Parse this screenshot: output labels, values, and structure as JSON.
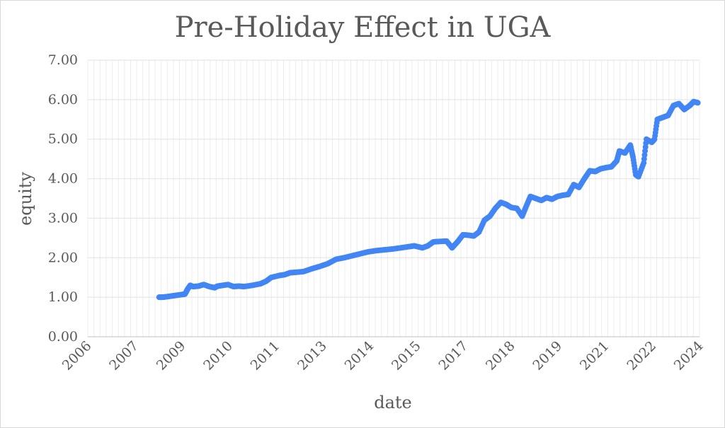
{
  "chart_data": {
    "type": "scatter",
    "title": "Pre-Holiday Effect in UGA",
    "xlabel": "date",
    "ylabel": "equity",
    "x_tick_labels": [
      "2006",
      "2007",
      "2009",
      "2010",
      "2011",
      "2013",
      "2014",
      "2015",
      "2017",
      "2018",
      "2019",
      "2021",
      "2022",
      "2024"
    ],
    "y_tick_labels": [
      "0.00",
      "1.00",
      "2.00",
      "3.00",
      "4.00",
      "5.00",
      "6.00",
      "7.00"
    ],
    "xlim": [
      "2006-02-01",
      "2024-12-20"
    ],
    "ylim": [
      0,
      7
    ],
    "grid": true,
    "series_color": "#4285f4",
    "series": [
      {
        "points": [
          [
            "2008-04-15",
            1.0
          ],
          [
            "2008-05-20",
            1.0
          ],
          [
            "2008-07-01",
            1.01
          ],
          [
            "2008-09-01",
            1.03
          ],
          [
            "2008-11-01",
            1.05
          ],
          [
            "2009-01-05",
            1.07
          ],
          [
            "2009-02-01",
            1.08
          ],
          [
            "2009-03-01",
            1.2
          ],
          [
            "2009-04-01",
            1.3
          ],
          [
            "2009-05-01",
            1.27
          ],
          [
            "2009-07-01",
            1.28
          ],
          [
            "2009-09-01",
            1.32
          ],
          [
            "2009-11-01",
            1.27
          ],
          [
            "2010-01-01",
            1.24
          ],
          [
            "2010-02-01",
            1.28
          ],
          [
            "2010-04-01",
            1.3
          ],
          [
            "2010-06-01",
            1.32
          ],
          [
            "2010-08-01",
            1.27
          ],
          [
            "2010-10-01",
            1.28
          ],
          [
            "2010-12-01",
            1.27
          ],
          [
            "2011-03-01",
            1.3
          ],
          [
            "2011-06-01",
            1.34
          ],
          [
            "2011-08-01",
            1.4
          ],
          [
            "2011-10-01",
            1.5
          ],
          [
            "2012-01-01",
            1.55
          ],
          [
            "2012-03-01",
            1.57
          ],
          [
            "2012-05-01",
            1.62
          ],
          [
            "2012-07-01",
            1.63
          ],
          [
            "2012-10-01",
            1.65
          ],
          [
            "2013-01-01",
            1.72
          ],
          [
            "2013-04-01",
            1.78
          ],
          [
            "2013-07-01",
            1.85
          ],
          [
            "2013-10-01",
            1.96
          ],
          [
            "2014-01-01",
            2.0
          ],
          [
            "2014-04-01",
            2.05
          ],
          [
            "2014-07-01",
            2.1
          ],
          [
            "2014-10-01",
            2.15
          ],
          [
            "2015-01-01",
            2.18
          ],
          [
            "2015-04-01",
            2.2
          ],
          [
            "2015-07-01",
            2.22
          ],
          [
            "2015-10-01",
            2.25
          ],
          [
            "2016-01-01",
            2.28
          ],
          [
            "2016-03-01",
            2.3
          ],
          [
            "2016-06-01",
            2.25
          ],
          [
            "2016-08-01",
            2.3
          ],
          [
            "2016-10-01",
            2.4
          ],
          [
            "2016-12-01",
            2.41
          ],
          [
            "2017-03-01",
            2.42
          ],
          [
            "2017-05-01",
            2.25
          ],
          [
            "2017-07-01",
            2.4
          ],
          [
            "2017-09-01",
            2.58
          ],
          [
            "2017-11-01",
            2.57
          ],
          [
            "2018-01-01",
            2.55
          ],
          [
            "2018-03-01",
            2.65
          ],
          [
            "2018-05-01",
            2.95
          ],
          [
            "2018-07-01",
            3.05
          ],
          [
            "2018-09-01",
            3.25
          ],
          [
            "2018-11-01",
            3.4
          ],
          [
            "2019-01-01",
            3.35
          ],
          [
            "2019-03-01",
            3.27
          ],
          [
            "2019-05-01",
            3.25
          ],
          [
            "2019-07-01",
            3.05
          ],
          [
            "2019-08-15",
            3.3
          ],
          [
            "2019-10-01",
            3.55
          ],
          [
            "2019-12-01",
            3.5
          ],
          [
            "2020-02-01",
            3.45
          ],
          [
            "2020-04-01",
            3.52
          ],
          [
            "2020-06-01",
            3.48
          ],
          [
            "2020-08-01",
            3.55
          ],
          [
            "2020-10-01",
            3.58
          ],
          [
            "2020-12-01",
            3.6
          ],
          [
            "2021-02-01",
            3.85
          ],
          [
            "2021-04-01",
            3.78
          ],
          [
            "2021-06-01",
            4.0
          ],
          [
            "2021-08-01",
            4.2
          ],
          [
            "2021-10-01",
            4.18
          ],
          [
            "2021-12-01",
            4.25
          ],
          [
            "2022-02-01",
            4.28
          ],
          [
            "2022-04-01",
            4.3
          ],
          [
            "2022-06-01",
            4.45
          ],
          [
            "2022-07-01",
            4.7
          ],
          [
            "2022-09-01",
            4.65
          ],
          [
            "2022-11-01",
            4.85
          ],
          [
            "2022-12-01",
            4.55
          ],
          [
            "2023-01-01",
            4.1
          ],
          [
            "2023-02-01",
            4.05
          ],
          [
            "2023-04-01",
            4.4
          ],
          [
            "2023-05-01",
            5.0
          ],
          [
            "2023-07-01",
            4.92
          ],
          [
            "2023-08-01",
            5.0
          ],
          [
            "2023-09-01",
            5.5
          ],
          [
            "2023-11-01",
            5.55
          ],
          [
            "2024-01-01",
            5.6
          ],
          [
            "2024-03-01",
            5.85
          ],
          [
            "2024-05-01",
            5.9
          ],
          [
            "2024-07-01",
            5.75
          ],
          [
            "2024-09-01",
            5.85
          ],
          [
            "2024-10-15",
            5.95
          ],
          [
            "2024-12-01",
            5.92
          ]
        ]
      }
    ]
  }
}
